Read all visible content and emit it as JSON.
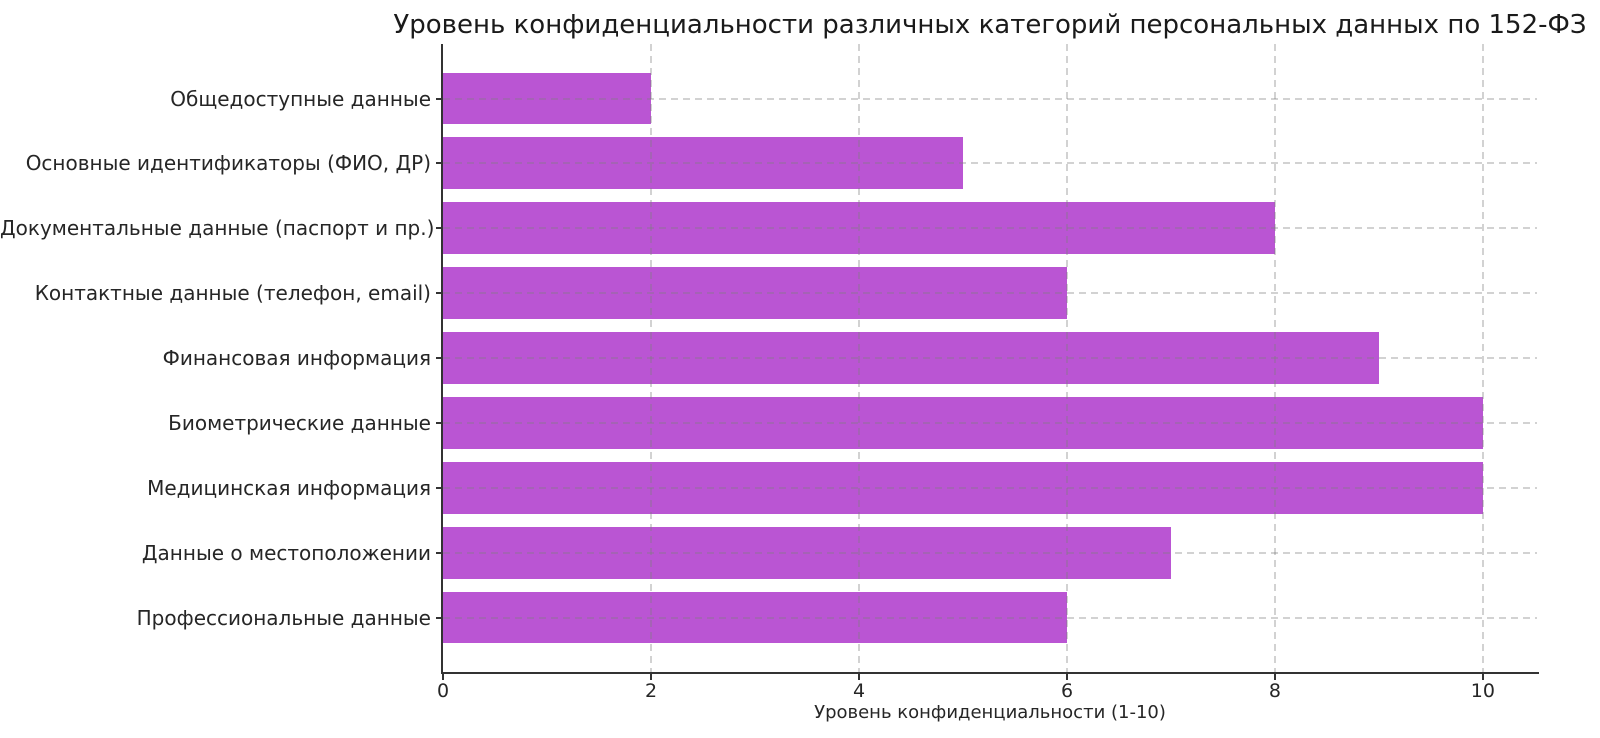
{
  "figure": {
    "background": "#ffffff"
  },
  "chart_data": {
    "type": "bar",
    "orientation": "horizontal",
    "title": "Уровень конфиденциальности различных категорий персональных данных по 152-ФЗ",
    "xlabel": "Уровень конфиденциальности (1-10)",
    "ylabel": "",
    "categories": [
      "Общедоступные данные",
      "Основные идентификаторы (ФИО, ДР)",
      "Документальные данные (паспорт и пр.)",
      "Контактные данные (телефон, email)",
      "Финансовая информация",
      "Биометрические данные",
      "Медицинская информация",
      "Данные о местоположении",
      "Профессиональные данные"
    ],
    "values": [
      2,
      5,
      8,
      6,
      9,
      10,
      10,
      7,
      6
    ],
    "xticks": [
      0,
      2,
      4,
      6,
      8,
      10
    ],
    "xlim": [
      0,
      10.52
    ],
    "ylim_padding": 0.84,
    "bar_height_fraction": 0.8,
    "bar_color": "#BA55D3",
    "spine_color": "#333333",
    "text_color": "#262626",
    "grid_color": "rgba(125,125,125,0.35)",
    "grid": {
      "axis": "both",
      "style": "dashed",
      "above_bars": true
    },
    "legend": null,
    "spines": {
      "top": false,
      "right": false,
      "left": true,
      "bottom": true
    }
  }
}
